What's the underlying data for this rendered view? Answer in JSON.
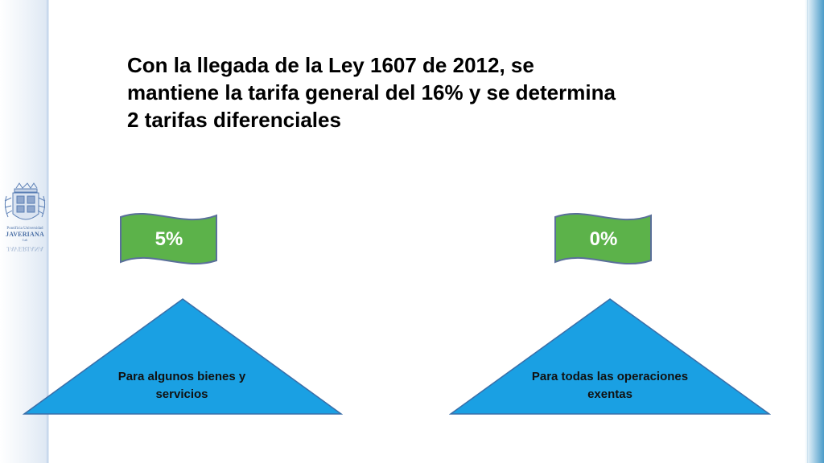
{
  "slide": {
    "title": "Con la llegada de la Ley 1607 de 2012, se mantiene la tarifa general del 16% y se determina 2 tarifas diferenciales",
    "rates": [
      {
        "value": "5%",
        "description": "Para algunos bienes y servicios"
      },
      {
        "value": "0%",
        "description": "Para todas las operaciones exentas"
      }
    ]
  },
  "logo": {
    "line1": "Pontificia Universidad",
    "line2": "JAVERIANA",
    "line3": "Cali"
  },
  "colors": {
    "flag_fill": "#5cb24a",
    "flag_stroke": "#5a6f9a",
    "triangle_fill": "#1aa0e3",
    "triangle_stroke": "#3a6ea8"
  }
}
